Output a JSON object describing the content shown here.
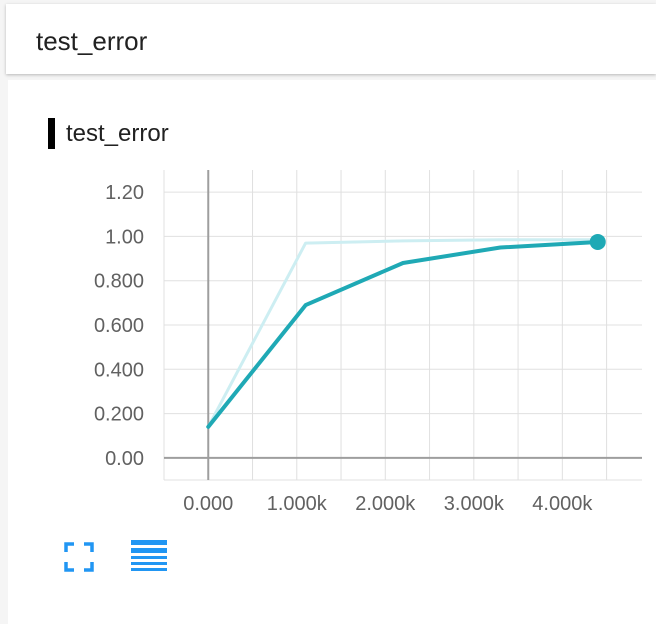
{
  "header": {
    "title": "test_error"
  },
  "card": {
    "title": "test_error",
    "fullscreen_icon": "fullscreen-icon",
    "data_table_icon": "list-icon"
  },
  "colors": {
    "series_main": "#1fa9b5",
    "series_raw": "#cdeef2",
    "axis": "#9e9e9e",
    "grid": "#e0e0e0",
    "icon": "#2196f3"
  },
  "chart_data": {
    "type": "line",
    "title": "",
    "xlabel": "",
    "ylabel": "",
    "xlim": [
      -500,
      4900
    ],
    "ylim": [
      -0.1,
      1.3
    ],
    "x_ticks": [
      0,
      1000,
      2000,
      3000,
      4000
    ],
    "x_tick_labels": [
      "0.000",
      "1.000k",
      "2.000k",
      "3.000k",
      "4.000k"
    ],
    "y_ticks": [
      0,
      0.2,
      0.4,
      0.6,
      0.8,
      1.0,
      1.2
    ],
    "y_tick_labels": [
      "0.00",
      "0.200",
      "0.400",
      "0.600",
      "0.800",
      "1.00",
      "1.20"
    ],
    "grid": true,
    "series": [
      {
        "role": "raw",
        "x": [
          0,
          1100,
          2200,
          3300,
          4400
        ],
        "y": [
          0.14,
          0.97,
          0.98,
          0.985,
          0.985
        ]
      },
      {
        "role": "smoothed",
        "x": [
          0,
          1100,
          2200,
          3300,
          4400
        ],
        "y": [
          0.14,
          0.69,
          0.88,
          0.95,
          0.975
        ]
      }
    ]
  }
}
